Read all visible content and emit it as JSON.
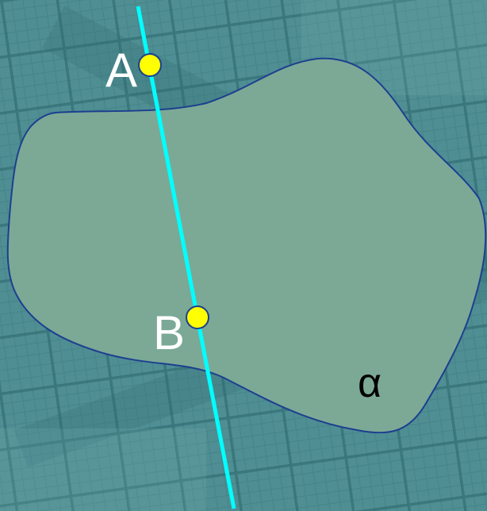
{
  "colors": {
    "background": "#4f8e93",
    "background_dark": "#2e6b70",
    "background_light": "#7db5b8",
    "plane_fill": "#7ba996",
    "plane_stroke": "#1d3f8f",
    "line": "#00ffff",
    "point_fill": "#ffff00",
    "point_stroke": "#1d3f8f",
    "point_label": "#ffffff",
    "plane_label": "#000000"
  },
  "points": [
    {
      "name": "A",
      "label": "A"
    },
    {
      "name": "B",
      "label": "B"
    }
  ],
  "plane": {
    "label": "α"
  }
}
